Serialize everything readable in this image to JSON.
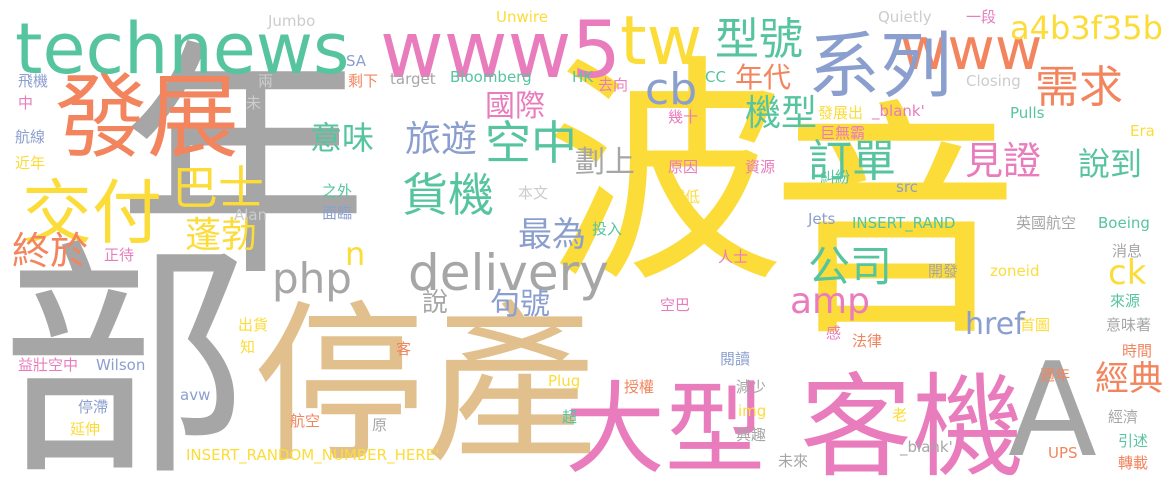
{
  "words": [
    {
      "id": "nian",
      "text": "年",
      "color": "#a6a6a6"
    },
    {
      "id": "bo",
      "text": "波",
      "color": "#fcdc39"
    },
    {
      "id": "yin",
      "text": "音",
      "color": "#fcdc39"
    },
    {
      "id": "bu",
      "text": "部",
      "color": "#a6a6a6"
    },
    {
      "id": "tingchan",
      "text": "停產",
      "color": "#e2c08d"
    },
    {
      "id": "kaji",
      "text": "客機",
      "color": "#e97cbd"
    },
    {
      "id": "daxing",
      "text": "大型",
      "color": "#e97cbd"
    },
    {
      "id": "fazhan",
      "text": "發展",
      "color": "#f2855e"
    },
    {
      "id": "jiaofu",
      "text": "交付",
      "color": "#fcdc39"
    },
    {
      "id": "technews",
      "text": "technews",
      "color": "#57c4a0"
    },
    {
      "id": "www5",
      "text": "www5",
      "color": "#e97cbd"
    },
    {
      "id": "tw",
      "text": "tw",
      "color": "#fcdc39"
    },
    {
      "id": "www",
      "text": "www",
      "color": "#f2855e"
    },
    {
      "id": "xilie",
      "text": "系列",
      "color": "#8b9fcf"
    },
    {
      "id": "A",
      "text": "A",
      "color": "#a6a6a6"
    },
    {
      "id": "delivery",
      "text": "delivery",
      "color": "#a6a6a6"
    },
    {
      "id": "php",
      "text": "php",
      "color": "#a6a6a6"
    },
    {
      "id": "huoji",
      "text": "貨機",
      "color": "#57c4a0"
    },
    {
      "id": "bashi",
      "text": "巴士",
      "color": "#fcdc39"
    },
    {
      "id": "xinghao",
      "text": "型號",
      "color": "#57c4a0"
    },
    {
      "id": "a4b3",
      "text": "a4b3f35b",
      "color": "#fcdc39"
    },
    {
      "id": "cb",
      "text": "cb",
      "color": "#8b9fcf"
    },
    {
      "id": "niandai",
      "text": "年代",
      "color": "#f2855e"
    },
    {
      "id": "xuqiu",
      "text": "需求",
      "color": "#f2855e"
    },
    {
      "id": "kongzhong",
      "text": "空中",
      "color": "#57c4a0"
    },
    {
      "id": "guoji",
      "text": "國際",
      "color": "#e97cbd"
    },
    {
      "id": "jixing",
      "text": "機型",
      "color": "#57c4a0"
    },
    {
      "id": "dingdan",
      "text": "訂單",
      "color": "#57c4a0"
    },
    {
      "id": "jianzheng",
      "text": "見證",
      "color": "#e97cbd"
    },
    {
      "id": "shuodao",
      "text": "說到",
      "color": "#57c4a0"
    },
    {
      "id": "lvyou",
      "text": "旅遊",
      "color": "#8b9fcf"
    },
    {
      "id": "yiwei",
      "text": "意味",
      "color": "#57c4a0"
    },
    {
      "id": "huashang",
      "text": "劃上",
      "color": "#a6a6a6"
    },
    {
      "id": "zuiwei",
      "text": "最為",
      "color": "#8b9fcf"
    },
    {
      "id": "pengbo",
      "text": "蓬勃",
      "color": "#fcdc39"
    },
    {
      "id": "zhongyu",
      "text": "終於",
      "color": "#f2855e"
    },
    {
      "id": "gongsi",
      "text": "公司",
      "color": "#57c4a0"
    },
    {
      "id": "amp",
      "text": "amp",
      "color": "#e97cbd"
    },
    {
      "id": "ck",
      "text": "ck",
      "color": "#fcdc39"
    },
    {
      "id": "href",
      "text": "href",
      "color": "#8b9fcf"
    },
    {
      "id": "jingdian",
      "text": "經典",
      "color": "#f2855e"
    },
    {
      "id": "juhao",
      "text": "句號",
      "color": "#8b9fcf"
    },
    {
      "id": "shuo",
      "text": "說",
      "color": "#a6a6a6"
    },
    {
      "id": "n",
      "text": "n",
      "color": "#fcdc39"
    },
    {
      "id": "jumbo",
      "text": "Jumbo",
      "color": "#cccccc"
    },
    {
      "id": "unwire",
      "text": "Unwire",
      "color": "#fcdc39"
    },
    {
      "id": "quietly",
      "text": "Quietly",
      "color": "#cccccc"
    },
    {
      "id": "yiduan",
      "text": "一段",
      "color": "#e97cbd"
    },
    {
      "id": "sa",
      "text": "SA",
      "color": "#8b9fcf"
    },
    {
      "id": "shengxia",
      "text": "剩下",
      "color": "#f2855e"
    },
    {
      "id": "target",
      "text": "target",
      "color": "#a6a6a6"
    },
    {
      "id": "bloomberg",
      "text": "Bloomberg",
      "color": "#57c4a0"
    },
    {
      "id": "hk",
      "text": "HK",
      "color": "#57c4a0"
    },
    {
      "id": "quxiang",
      "text": "去向",
      "color": "#e97cbd"
    },
    {
      "id": "cc",
      "text": "CC",
      "color": "#57c4a0"
    },
    {
      "id": "xiaoji",
      "text": "消息",
      "color": "#a6a6a6"
    },
    {
      "id": "closing",
      "text": "Closing",
      "color": "#cccccc"
    },
    {
      "id": "feiji",
      "text": "飛機",
      "color": "#8b9fcf"
    },
    {
      "id": "zhong",
      "text": "中",
      "color": "#e97cbd"
    },
    {
      "id": "liang",
      "text": "兩",
      "color": "#cccccc"
    },
    {
      "id": "wei",
      "text": "未",
      "color": "#cccccc"
    },
    {
      "id": "jishi",
      "text": "幾十",
      "color": "#e97cbd"
    },
    {
      "id": "fazhanchu",
      "text": "發展出",
      "color": "#fcdc39"
    },
    {
      "id": "blank",
      "text": "_blank'",
      "color": "#e97cbd"
    },
    {
      "id": "juwuba",
      "text": "巨無霸",
      "color": "#e97cbd"
    },
    {
      "id": "pulls",
      "text": "Pulls",
      "color": "#57c4a0"
    },
    {
      "id": "era",
      "text": "Era",
      "color": "#fcdc39"
    },
    {
      "id": "hangxian",
      "text": "航線",
      "color": "#8b9fcf"
    },
    {
      "id": "jinnian",
      "text": "近年",
      "color": "#fcdc39"
    },
    {
      "id": "yuanyin",
      "text": "原因",
      "color": "#e97cbd"
    },
    {
      "id": "ziyuan",
      "text": "資源",
      "color": "#e97cbd"
    },
    {
      "id": "jiufen",
      "text": "糾紛",
      "color": "#57c4a0"
    },
    {
      "id": "src",
      "text": "src",
      "color": "#8b9fcf"
    },
    {
      "id": "zhiwai",
      "text": "之外",
      "color": "#57c4a0"
    },
    {
      "id": "mianlin",
      "text": "面臨",
      "color": "#8b9fcf"
    },
    {
      "id": "benwen",
      "text": "本文",
      "color": "#cccccc"
    },
    {
      "id": "jiandi",
      "text": "減低",
      "color": "#fcdc39"
    },
    {
      "id": "alan",
      "text": "Alan",
      "color": "#cccccc"
    },
    {
      "id": "jets",
      "text": "Jets",
      "color": "#8b9fcf"
    },
    {
      "id": "insert_rand",
      "text": "INSERT_RAND",
      "color": "#57c4a0"
    },
    {
      "id": "yingguo",
      "text": "英國航空",
      "color": "#a6a6a6"
    },
    {
      "id": "boeing",
      "text": "Boeing",
      "color": "#57c4a0"
    },
    {
      "id": "touru",
      "text": "投入",
      "color": "#57c4a0"
    },
    {
      "id": "zhengdai",
      "text": "正待",
      "color": "#e97cbd"
    },
    {
      "id": "renshi",
      "text": "人士",
      "color": "#e97cbd"
    },
    {
      "id": "kaifa",
      "text": "開發",
      "color": "#a6a6a6"
    },
    {
      "id": "zoneid",
      "text": "zoneid",
      "color": "#fcdc39"
    },
    {
      "id": "laiyuan",
      "text": "來源",
      "color": "#57c4a0"
    },
    {
      "id": "kongba",
      "text": "空巴",
      "color": "#e97cbd"
    },
    {
      "id": "chuhuo",
      "text": "出貨",
      "color": "#fcdc39"
    },
    {
      "id": "zhi",
      "text": "知",
      "color": "#fcdc39"
    },
    {
      "id": "ke",
      "text": "客",
      "color": "#f2855e"
    },
    {
      "id": "gan",
      "text": "感",
      "color": "#e97cbd"
    },
    {
      "id": "shoutu",
      "text": "首圖",
      "color": "#fcdc39"
    },
    {
      "id": "falv",
      "text": "法律",
      "color": "#f2855e"
    },
    {
      "id": "yiweizhe",
      "text": "意味著",
      "color": "#a6a6a6"
    },
    {
      "id": "yizhuang",
      "text": "益壯空中",
      "color": "#e97cbd"
    },
    {
      "id": "wilson",
      "text": "Wilson",
      "color": "#8b9fcf"
    },
    {
      "id": "yuedu",
      "text": "閱讀",
      "color": "#8b9fcf"
    },
    {
      "id": "shijian",
      "text": "時間",
      "color": "#f2855e"
    },
    {
      "id": "zhounian",
      "text": "週年",
      "color": "#f2855e"
    },
    {
      "id": "avw",
      "text": "avw",
      "color": "#8b9fcf"
    },
    {
      "id": "plug",
      "text": "Plug",
      "color": "#fcdc39"
    },
    {
      "id": "shouquan",
      "text": "授權",
      "color": "#f2855e"
    },
    {
      "id": "jianshao",
      "text": "減少",
      "color": "#a6a6a6"
    },
    {
      "id": "tingzhi",
      "text": "停滯",
      "color": "#8b9fcf"
    },
    {
      "id": "yanshen",
      "text": "延伸",
      "color": "#fcdc39"
    },
    {
      "id": "chao",
      "text": "超",
      "color": "#57c4a0"
    },
    {
      "id": "img",
      "text": "img",
      "color": "#fcdc39"
    },
    {
      "id": "lao",
      "text": "老",
      "color": "#fcdc39"
    },
    {
      "id": "jingji",
      "text": "經濟",
      "color": "#a6a6a6"
    },
    {
      "id": "hangkong",
      "text": "航空",
      "color": "#f2855e"
    },
    {
      "id": "yuan",
      "text": "原",
      "color": "#a6a6a6"
    },
    {
      "id": "xingqu",
      "text": "興趣",
      "color": "#a6a6a6"
    },
    {
      "id": "yinshu",
      "text": "引述",
      "color": "#57c4a0"
    },
    {
      "id": "insert_random",
      "text": "INSERT_RANDOM_NUMBER_HERE'",
      "color": "#fcdc39"
    },
    {
      "id": "weilai",
      "text": "未來",
      "color": "#a6a6a6"
    },
    {
      "id": "blank_apos",
      "text": "_blank'",
      "color": "#a6a6a6"
    },
    {
      "id": "ups",
      "text": "UPS",
      "color": "#f2855e"
    },
    {
      "id": "zhuanzai",
      "text": "轉載",
      "color": "#f2855e"
    }
  ]
}
